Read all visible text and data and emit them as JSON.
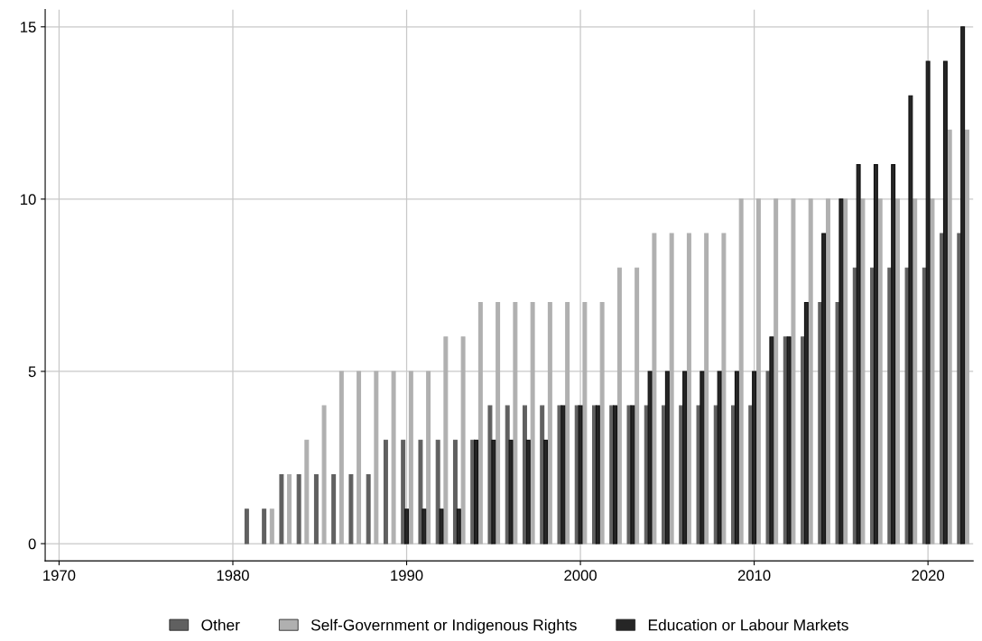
{
  "chart_data": {
    "type": "bar",
    "xlim": [
      1969.2,
      2022.6
    ],
    "xticks": [
      1970,
      1980,
      1990,
      2000,
      2010,
      2020
    ],
    "ylim": [
      -0.5,
      15.5
    ],
    "yticks": [
      0,
      5,
      10,
      15
    ],
    "grid": true,
    "legend": "bottom",
    "series": [
      {
        "name": "Other",
        "color": "#606060",
        "x": [
          1980.8,
          1981.8,
          1982.8,
          1983.8,
          1984.8,
          1985.8,
          1986.8,
          1987.8,
          1988.8,
          1989.8,
          1990.8,
          1991.8,
          1992.8,
          1993.8,
          1994.8,
          1995.8,
          1996.8,
          1997.8,
          1998.8,
          1999.8,
          2000.8,
          2001.8,
          2002.8,
          2003.8,
          2004.8,
          2005.8,
          2006.8,
          2007.8,
          2008.8,
          2009.8,
          2010.8,
          2011.8,
          2012.8,
          2013.8,
          2014.8,
          2015.8,
          2016.8,
          2017.8,
          2018.8,
          2019.8,
          2020.8,
          2021.8
        ],
        "values": [
          1,
          1,
          2,
          2,
          2,
          2,
          2,
          2,
          3,
          3,
          3,
          3,
          3,
          3,
          4,
          4,
          4,
          4,
          4,
          4,
          4,
          4,
          4,
          4,
          4,
          4,
          4,
          4,
          4,
          4,
          5,
          6,
          6,
          7,
          7,
          8,
          8,
          8,
          8,
          8,
          9,
          9
        ]
      },
      {
        "name": "Self-Government or Indigenous Rights",
        "color": "#b0b0b0",
        "x": [
          1982.25,
          1983.25,
          1984.25,
          1985.25,
          1986.25,
          1987.25,
          1988.25,
          1989.25,
          1990.25,
          1991.25,
          1992.25,
          1993.25,
          1994.25,
          1995.25,
          1996.25,
          1997.25,
          1998.25,
          1999.25,
          2000.25,
          2001.25,
          2002.25,
          2003.25,
          2004.25,
          2005.25,
          2006.25,
          2007.25,
          2008.25,
          2009.25,
          2010.25,
          2011.25,
          2012.25,
          2013.25,
          2014.25,
          2015.25,
          2016.25,
          2017.25,
          2018.25,
          2019.25,
          2020.25,
          2021.25,
          2022.25
        ],
        "values": [
          1,
          2,
          3,
          4,
          5,
          5,
          5,
          5,
          5,
          5,
          6,
          6,
          7,
          7,
          7,
          7,
          7,
          7,
          7,
          7,
          8,
          8,
          9,
          9,
          9,
          9,
          9,
          10,
          10,
          10,
          10,
          10,
          10,
          10,
          10,
          10,
          10,
          10,
          10,
          12,
          12
        ]
      },
      {
        "name": "Education or Labour Markets",
        "color": "#262626",
        "x": [
          1990,
          1991,
          1992,
          1993,
          1994,
          1995,
          1996,
          1997,
          1998,
          1999,
          2000,
          2001,
          2002,
          2003,
          2004,
          2005,
          2006,
          2007,
          2008,
          2009,
          2010,
          2011,
          2012,
          2013,
          2014,
          2015,
          2016,
          2017,
          2018,
          2019,
          2020,
          2021,
          2022
        ],
        "values": [
          1,
          1,
          1,
          1,
          3,
          3,
          3,
          3,
          3,
          4,
          4,
          4,
          4,
          4,
          5,
          5,
          5,
          5,
          5,
          5,
          5,
          6,
          6,
          7,
          9,
          10,
          11,
          11,
          11,
          13,
          14,
          14,
          15
        ]
      }
    ]
  }
}
